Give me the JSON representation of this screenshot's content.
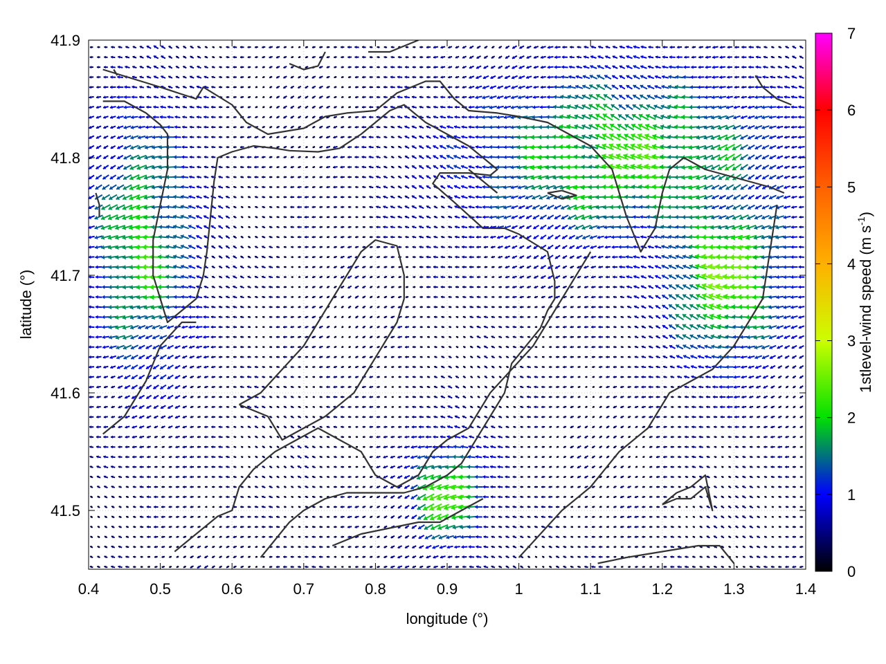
{
  "chart_data": {
    "type": "vector_field",
    "xlabel": "longitude (°)",
    "ylabel": "latitude (°)",
    "xlim": [
      0.4,
      1.4
    ],
    "ylim": [
      41.45,
      41.9
    ],
    "x_ticks": [
      "0.4",
      "0.5",
      "0.6",
      "0.7",
      "0.8",
      "0.9",
      "1",
      "1.1",
      "1.2",
      "1.3",
      "1.4"
    ],
    "x_tick_values": [
      0.4,
      0.5,
      0.6,
      0.7,
      0.8,
      0.9,
      1.0,
      1.1,
      1.2,
      1.3,
      1.4
    ],
    "y_ticks": [
      "41.5",
      "41.6",
      "41.7",
      "41.8",
      "41.9"
    ],
    "y_tick_values": [
      41.5,
      41.6,
      41.7,
      41.8,
      41.9
    ],
    "grid": "dotted",
    "colorbar": {
      "label_base": "1stlevel-wind speed (m s",
      "label_sup": "-1",
      "label_end": ")",
      "range": [
        0,
        7
      ],
      "ticks": [
        "0",
        "1",
        "2",
        "3",
        "4",
        "5",
        "6",
        "7"
      ],
      "tick_values": [
        0,
        1,
        2,
        3,
        4,
        5,
        6,
        7
      ],
      "stops": [
        {
          "value": 0,
          "color": "#000000"
        },
        {
          "value": 1,
          "color": "#0000ff"
        },
        {
          "value": 2,
          "color": "#00e000"
        },
        {
          "value": 3,
          "color": "#ccff00"
        },
        {
          "value": 4,
          "color": "#ffb000"
        },
        {
          "value": 5,
          "color": "#ff6000"
        },
        {
          "value": 6,
          "color": "#ff0000"
        },
        {
          "value": 7,
          "color": "#ff00ff"
        }
      ]
    },
    "vectors": {
      "grid_spacing": [
        0.01,
        0.0085
      ],
      "mean_direction": "westward",
      "regions": [
        {
          "name": "northeast",
          "speed": 2.1,
          "lon": [
            0.9,
            1.4
          ],
          "lat": [
            41.72,
            41.88
          ]
        },
        {
          "name": "east",
          "speed": 2.4,
          "lon": [
            1.2,
            1.38
          ],
          "lat": [
            41.62,
            41.78
          ]
        },
        {
          "name": "west",
          "speed": 2.0,
          "lon": [
            0.4,
            0.55
          ],
          "lat": [
            41.6,
            41.85
          ]
        },
        {
          "name": "south-central",
          "speed": 2.3,
          "lon": [
            0.85,
            0.95
          ],
          "lat": [
            41.47,
            41.56
          ]
        },
        {
          "name": "center",
          "speed": 0.6,
          "lon": [
            0.6,
            0.85
          ],
          "lat": [
            41.6,
            41.78
          ]
        }
      ]
    },
    "contours": [
      [
        [
          0.42,
          41.875
        ],
        [
          0.5,
          41.86
        ],
        [
          0.55,
          41.85
        ],
        [
          0.56,
          41.86
        ],
        [
          0.6,
          41.845
        ],
        [
          0.62,
          41.83
        ],
        [
          0.65,
          41.82
        ],
        [
          0.7,
          41.825
        ],
        [
          0.73,
          41.835
        ],
        [
          0.76,
          41.838
        ],
        [
          0.8,
          41.84
        ],
        [
          0.83,
          41.855
        ],
        [
          0.87,
          41.865
        ],
        [
          0.89,
          41.865
        ],
        [
          0.91,
          41.85
        ],
        [
          0.93,
          41.84
        ],
        [
          0.97,
          41.838
        ],
        [
          1.0,
          41.835
        ],
        [
          1.04,
          41.83
        ],
        [
          1.07,
          41.82
        ],
        [
          1.1,
          41.81
        ],
        [
          1.13,
          41.79
        ],
        [
          1.15,
          41.75
        ],
        [
          1.17,
          41.72
        ],
        [
          1.19,
          41.74
        ],
        [
          1.2,
          41.77
        ],
        [
          1.21,
          41.79
        ],
        [
          1.23,
          41.8
        ],
        [
          1.26,
          41.79
        ],
        [
          1.29,
          41.785
        ],
        [
          1.32,
          41.78
        ],
        [
          1.35,
          41.775
        ],
        [
          1.37,
          41.77
        ]
      ],
      [
        [
          0.42,
          41.848
        ],
        [
          0.45,
          41.848
        ],
        [
          0.48,
          41.838
        ],
        [
          0.5,
          41.828
        ],
        [
          0.51,
          41.82
        ],
        [
          0.51,
          41.79
        ],
        [
          0.5,
          41.76
        ],
        [
          0.49,
          41.73
        ],
        [
          0.49,
          41.7
        ],
        [
          0.5,
          41.68
        ],
        [
          0.51,
          41.66
        ],
        [
          0.53,
          41.67
        ],
        [
          0.55,
          41.68
        ],
        [
          0.56,
          41.7
        ],
        [
          0.565,
          41.72
        ],
        [
          0.57,
          41.75
        ],
        [
          0.575,
          41.78
        ],
        [
          0.58,
          41.8
        ],
        [
          0.6,
          41.805
        ],
        [
          0.63,
          41.81
        ],
        [
          0.66,
          41.808
        ],
        [
          0.68,
          41.806
        ],
        [
          0.72,
          41.805
        ],
        [
          0.75,
          41.808
        ],
        [
          0.78,
          41.82
        ],
        [
          0.8,
          41.83
        ],
        [
          0.82,
          41.84
        ],
        [
          0.84,
          41.845
        ],
        [
          0.87,
          41.83
        ],
        [
          0.9,
          41.82
        ],
        [
          0.93,
          41.81
        ],
        [
          0.95,
          41.8
        ],
        [
          0.97,
          41.79
        ],
        [
          0.96,
          41.785
        ],
        [
          0.93,
          41.787
        ],
        [
          0.89,
          41.787
        ],
        [
          0.88,
          41.778
        ],
        [
          0.91,
          41.762
        ],
        [
          0.95,
          41.74
        ],
        [
          0.98,
          41.74
        ],
        [
          1.0,
          41.735
        ],
        [
          1.04,
          41.72
        ],
        [
          1.05,
          41.695
        ],
        [
          1.05,
          41.68
        ],
        [
          1.04,
          41.67
        ],
        [
          1.03,
          41.655
        ],
        [
          1.01,
          41.64
        ],
        [
          0.99,
          41.625
        ],
        [
          0.98,
          41.6
        ],
        [
          0.96,
          41.58
        ],
        [
          0.94,
          41.56
        ],
        [
          0.92,
          41.54
        ],
        [
          0.9,
          41.53
        ],
        [
          0.87,
          41.52
        ],
        [
          0.84,
          41.515
        ],
        [
          0.8,
          41.515
        ],
        [
          0.76,
          41.515
        ],
        [
          0.73,
          41.51
        ],
        [
          0.7,
          41.5
        ],
        [
          0.68,
          41.49
        ],
        [
          0.66,
          41.475
        ],
        [
          0.64,
          41.46
        ]
      ],
      [
        [
          0.435,
          41.875
        ],
        [
          0.44,
          41.87
        ]
      ],
      [
        [
          0.61,
          41.59
        ],
        [
          0.64,
          41.6
        ],
        [
          0.67,
          41.62
        ],
        [
          0.7,
          41.64
        ],
        [
          0.72,
          41.66
        ],
        [
          0.74,
          41.68
        ],
        [
          0.76,
          41.7
        ],
        [
          0.78,
          41.72
        ],
        [
          0.8,
          41.73
        ],
        [
          0.83,
          41.725
        ],
        [
          0.84,
          41.7
        ],
        [
          0.84,
          41.68
        ],
        [
          0.83,
          41.66
        ],
        [
          0.81,
          41.64
        ],
        [
          0.79,
          41.62
        ],
        [
          0.77,
          41.6
        ],
        [
          0.73,
          41.58
        ],
        [
          0.7,
          41.57
        ],
        [
          0.67,
          41.56
        ],
        [
          0.65,
          41.58
        ],
        [
          0.63,
          41.585
        ],
        [
          0.61,
          41.59
        ]
      ],
      [
        [
          0.52,
          41.465
        ],
        [
          0.55,
          41.48
        ],
        [
          0.58,
          41.495
        ],
        [
          0.6,
          41.5
        ],
        [
          0.61,
          41.52
        ],
        [
          0.63,
          41.535
        ],
        [
          0.66,
          41.55
        ],
        [
          0.69,
          41.56
        ],
        [
          0.72,
          41.57
        ],
        [
          0.75,
          41.56
        ],
        [
          0.78,
          41.55
        ],
        [
          0.8,
          41.53
        ],
        [
          0.83,
          41.52
        ],
        [
          0.86,
          41.53
        ],
        [
          0.88,
          41.55
        ],
        [
          0.9,
          41.56
        ],
        [
          0.93,
          41.57
        ],
        [
          0.96,
          41.6
        ],
        [
          0.99,
          41.62
        ],
        [
          1.02,
          41.64
        ],
        [
          1.04,
          41.66
        ],
        [
          1.06,
          41.68
        ],
        [
          1.08,
          41.7
        ],
        [
          1.1,
          41.72
        ]
      ],
      [
        [
          1.0,
          41.46
        ],
        [
          1.03,
          41.48
        ],
        [
          1.06,
          41.5
        ],
        [
          1.1,
          41.52
        ],
        [
          1.14,
          41.55
        ],
        [
          1.18,
          41.57
        ],
        [
          1.21,
          41.6
        ],
        [
          1.24,
          41.61
        ],
        [
          1.27,
          41.62
        ],
        [
          1.3,
          41.64
        ],
        [
          1.32,
          41.66
        ],
        [
          1.34,
          41.68
        ],
        [
          1.35,
          41.72
        ],
        [
          1.36,
          41.76
        ]
      ],
      [
        [
          1.2,
          41.505
        ],
        [
          1.22,
          41.51
        ],
        [
          1.24,
          41.51
        ],
        [
          1.26,
          41.52
        ],
        [
          1.27,
          41.5
        ],
        [
          1.26,
          41.53
        ],
        [
          1.24,
          41.52
        ],
        [
          1.22,
          41.515
        ],
        [
          1.2,
          41.505
        ]
      ],
      [
        [
          1.11,
          41.455
        ],
        [
          1.15,
          41.46
        ],
        [
          1.2,
          41.465
        ],
        [
          1.25,
          41.47
        ],
        [
          1.28,
          41.47
        ],
        [
          1.3,
          41.455
        ]
      ],
      [
        [
          0.74,
          41.47
        ],
        [
          0.78,
          41.48
        ],
        [
          0.82,
          41.485
        ],
        [
          0.86,
          41.49
        ],
        [
          0.89,
          41.49
        ],
        [
          0.92,
          41.5
        ],
        [
          0.95,
          41.51
        ]
      ],
      [
        [
          0.42,
          41.565
        ],
        [
          0.45,
          41.58
        ],
        [
          0.48,
          41.61
        ],
        [
          0.5,
          41.64
        ],
        [
          0.53,
          41.66
        ],
        [
          0.55,
          41.66
        ]
      ],
      [
        [
          0.415,
          41.75
        ],
        [
          0.415,
          41.76
        ],
        [
          0.41,
          41.77
        ]
      ],
      [
        [
          0.93,
          41.79
        ],
        [
          0.95,
          41.78
        ],
        [
          0.97,
          41.77
        ]
      ],
      [
        [
          1.04,
          41.77
        ],
        [
          1.06,
          41.765
        ],
        [
          1.08,
          41.768
        ],
        [
          1.06,
          41.772
        ],
        [
          1.04,
          41.77
        ]
      ],
      [
        [
          1.33,
          41.87
        ],
        [
          1.34,
          41.86
        ],
        [
          1.36,
          41.85
        ],
        [
          1.38,
          41.845
        ]
      ],
      [
        [
          0.79,
          41.89
        ],
        [
          0.82,
          41.89
        ],
        [
          0.84,
          41.895
        ],
        [
          0.86,
          41.9
        ]
      ],
      [
        [
          0.68,
          41.88
        ],
        [
          0.7,
          41.875
        ],
        [
          0.72,
          41.878
        ],
        [
          0.73,
          41.89
        ]
      ]
    ]
  }
}
